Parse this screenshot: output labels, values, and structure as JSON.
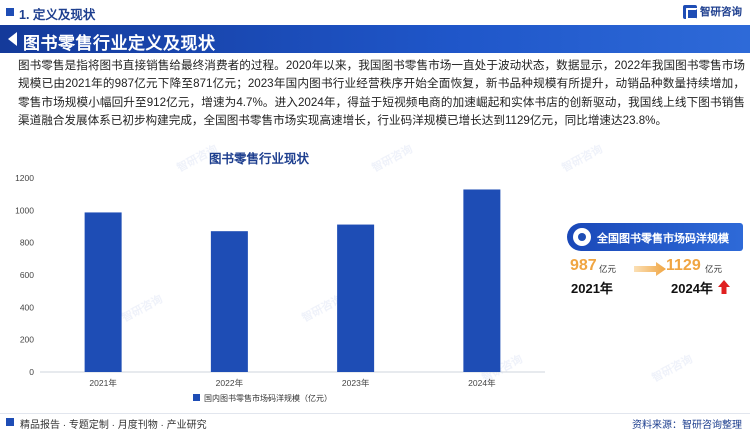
{
  "header": {
    "section_title": "1. 定义及现状",
    "logo_text": "智研咨询"
  },
  "banner": {
    "title": "图书零售行业定义及现状"
  },
  "intro": {
    "paragraph": "图书零售是指将图书直接销售给最终消费者的过程。2020年以来，我国图书零售市场一直处于波动状态，数据显示，2022年我国图书零售市场规模已由2021年的987亿元下降至871亿元；2023年国内图书行业经营秩序开始全面恢复，新书品种规模有所提升，动销品种数量持续增加，零售市场规模小幅回升至912亿元，增速为4.7%。进入2024年，得益于短视频电商的加速崛起和实体书店的创新驱动，我国线上线下图书销售渠道融合发展体系已初步构建完成，全国图书零售市场实现高速增长，行业码洋规模已增长达到1129亿元，同比增速达23.8%。"
  },
  "chart_data": {
    "type": "bar",
    "title": "图书零售行业现状",
    "categories": [
      "2021年",
      "2022年",
      "2023年",
      "2024年"
    ],
    "series": [
      {
        "name": "国内图书零售市场码洋规模（亿元）",
        "values": [
          987,
          871,
          912,
          1129
        ],
        "color": "#1e4db5"
      }
    ],
    "ylim": [
      0,
      1200
    ],
    "yticks": [
      0,
      200,
      400,
      600,
      800,
      1000,
      1200
    ],
    "grid": false,
    "legend_position": "bottom-center"
  },
  "panel": {
    "title": "全国图书零售市场码洋规模",
    "value_2021": "987",
    "unit_2021": "亿元",
    "year_2021": "2021年",
    "value_2024": "1129",
    "unit_2024": "亿元",
    "year_2024": "2024年",
    "accent_color": "#f0a542",
    "arrow_color": "#e02020"
  },
  "footer": {
    "left": "精品报告 · 专题定制 · 月度刊物 · 产业研究",
    "right": "资料来源：智研咨询整理"
  },
  "watermark": {
    "text": "智研咨询"
  }
}
